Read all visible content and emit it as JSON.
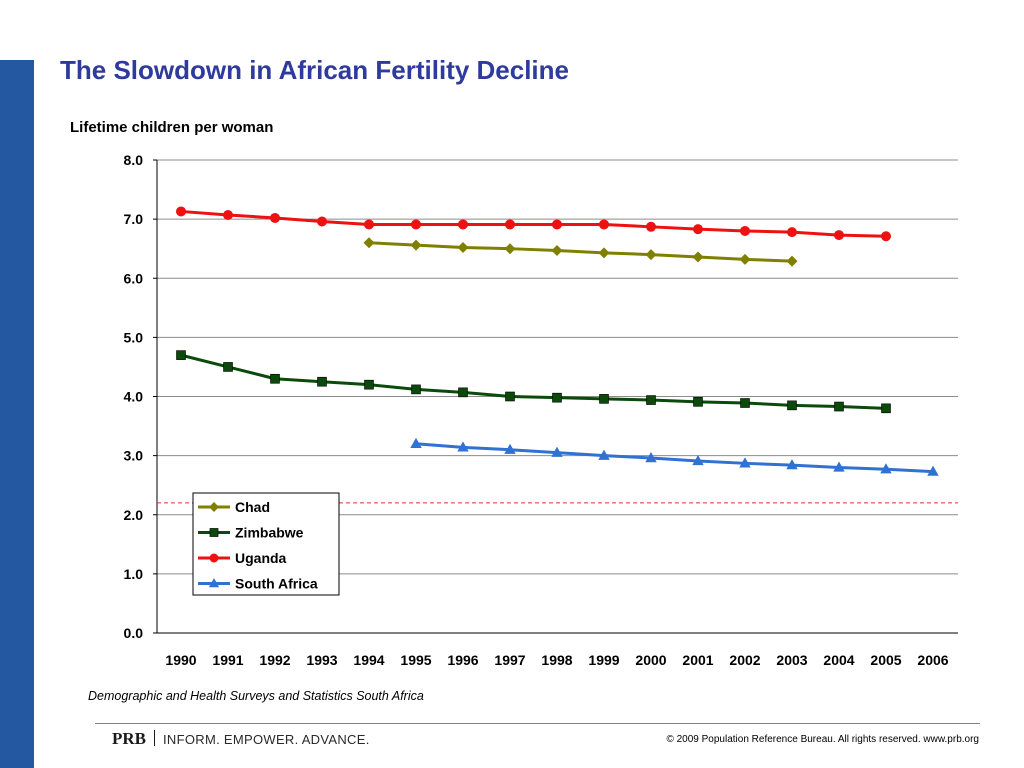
{
  "slide": {
    "title": "The Slowdown in African Fertility Decline",
    "source": "Demographic and Health Surveys and Statistics South Africa",
    "brand": "PRB",
    "tagline": "INFORM. EMPOWER. ADVANCE.",
    "copyright": "© 2009 Population Reference Bureau. All rights reserved. www.prb.org",
    "accent_color": "#2458a0",
    "title_color": "#2e3a9c"
  },
  "chart_data": {
    "type": "line",
    "title": "",
    "xlabel": "",
    "ylabel": "Lifetime children per woman",
    "x": [
      "1990",
      "1991",
      "1992",
      "1993",
      "1994",
      "1995",
      "1996",
      "1997",
      "1998",
      "1999",
      "2000",
      "2001",
      "2002",
      "2003",
      "2004",
      "2005",
      "2006"
    ],
    "ylim": [
      0,
      8
    ],
    "yticks": [
      "0.0",
      "1.0",
      "2.0",
      "3.0",
      "4.0",
      "5.0",
      "6.0",
      "7.0",
      "8.0"
    ],
    "grid": true,
    "reference_line": {
      "y": 2.2,
      "color": "#e03030",
      "style": "dashed"
    },
    "legend": {
      "placement": "lower-left"
    },
    "series": [
      {
        "name": "Chad",
        "color": "#808000",
        "marker": "diamond",
        "values": [
          null,
          null,
          null,
          null,
          6.6,
          6.56,
          6.52,
          6.5,
          6.47,
          6.43,
          6.4,
          6.36,
          6.32,
          6.29,
          null,
          null,
          null
        ]
      },
      {
        "name": "Zimbabwe",
        "color": "#0c4a0c",
        "marker": "square",
        "values": [
          4.7,
          4.5,
          4.3,
          4.25,
          4.2,
          4.12,
          4.07,
          4.0,
          3.98,
          3.96,
          3.94,
          3.91,
          3.89,
          3.85,
          3.83,
          3.8,
          null
        ]
      },
      {
        "name": "Uganda",
        "color": "#ee1111",
        "marker": "circle",
        "values": [
          7.13,
          7.07,
          7.02,
          6.96,
          6.91,
          6.91,
          6.91,
          6.91,
          6.91,
          6.91,
          6.87,
          6.83,
          6.8,
          6.78,
          6.73,
          6.71,
          null
        ]
      },
      {
        "name": "South Africa",
        "color": "#2f72d2",
        "marker": "triangle",
        "values": [
          null,
          null,
          null,
          null,
          null,
          3.2,
          3.14,
          3.1,
          3.05,
          3.0,
          2.96,
          2.91,
          2.87,
          2.84,
          2.8,
          2.77,
          2.73
        ]
      }
    ]
  }
}
